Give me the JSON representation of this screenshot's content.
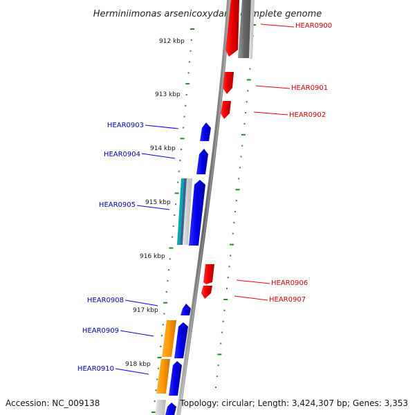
{
  "title": "Herminiimonas arsenicoxydans, complete genome",
  "footer": {
    "accession": "Accession: NC_009138",
    "topology": "Topology: circular; Length: 3,424,307 bp; Genes: 3,353"
  },
  "colors": {
    "forward": "#0000ee",
    "reverse": "#ee0000",
    "ruler": "#228b22",
    "backbone": "#888888",
    "other_feature": "#ff9900",
    "rna_feature": "#00aaaa"
  },
  "kbp_labels": [
    "912 kbp",
    "913 kbp",
    "914 kbp",
    "915 kbp",
    "916 kbp",
    "917 kbp",
    "918 kbp"
  ],
  "genes_left": [
    {
      "id": "HEAR0903",
      "strand": "forward"
    },
    {
      "id": "HEAR0904",
      "strand": "forward"
    },
    {
      "id": "HEAR0905",
      "strand": "forward"
    },
    {
      "id": "HEAR0908",
      "strand": "forward"
    },
    {
      "id": "HEAR0909",
      "strand": "forward"
    },
    {
      "id": "HEAR0910",
      "strand": "forward"
    }
  ],
  "genes_right": [
    {
      "id": "HEAR0900",
      "strand": "reverse"
    },
    {
      "id": "HEAR0901",
      "strand": "reverse"
    },
    {
      "id": "HEAR0902",
      "strand": "reverse"
    },
    {
      "id": "HEAR0906",
      "strand": "reverse"
    },
    {
      "id": "HEAR0907",
      "strand": "reverse"
    }
  ]
}
